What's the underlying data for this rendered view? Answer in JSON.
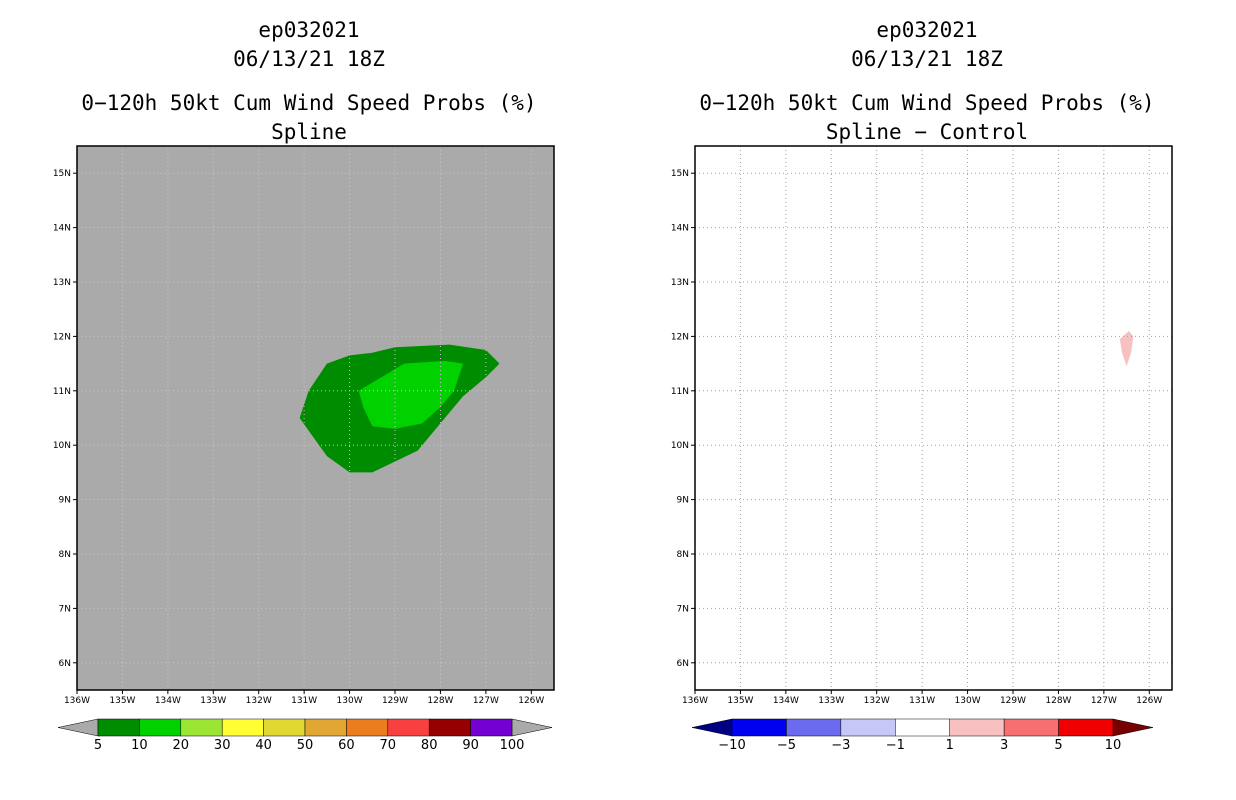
{
  "chart_data": [
    {
      "type": "heatmap",
      "titles": [
        "ep032021",
        "06/13/21 18Z",
        "0−120h 50kt Cum Wind Speed Probs (%)",
        "Spline"
      ],
      "x_ticks": [
        "136W",
        "135W",
        "134W",
        "133W",
        "132W",
        "131W",
        "130W",
        "129W",
        "128W",
        "127W",
        "126W"
      ],
      "y_ticks": [
        "6N",
        "7N",
        "8N",
        "9N",
        "10N",
        "11N",
        "12N",
        "13N",
        "14N",
        "15N"
      ],
      "xlim_lon": [
        -136,
        -125.5
      ],
      "ylim_lat": [
        5.5,
        15.5
      ],
      "background_color": "#aaaaaa",
      "colorbar": {
        "labels": [
          "5",
          "10",
          "20",
          "30",
          "40",
          "50",
          "60",
          "70",
          "80",
          "90",
          "100"
        ],
        "colors": [
          "#008c00",
          "#00d200",
          "#9be632",
          "#ffff32",
          "#dfd932",
          "#e1a732",
          "#eb7d1e",
          "#f84040",
          "#960000",
          "#7500d3"
        ],
        "under_color": "#aaaaaa",
        "over_color": "#aaaaaa"
      },
      "contours": [
        {
          "level": "5-10",
          "color": "#008c00",
          "polygon": [
            [
              -131.1,
              10.5
            ],
            [
              -130.9,
              11.0
            ],
            [
              -130.5,
              11.5
            ],
            [
              -130.0,
              11.65
            ],
            [
              -129.5,
              11.7
            ],
            [
              -129.0,
              11.8
            ],
            [
              -127.8,
              11.85
            ],
            [
              -127.0,
              11.75
            ],
            [
              -126.7,
              11.5
            ],
            [
              -127.0,
              11.25
            ],
            [
              -127.5,
              10.9
            ],
            [
              -128.0,
              10.4
            ],
            [
              -128.5,
              9.9
            ],
            [
              -129.5,
              9.5
            ],
            [
              -130.0,
              9.5
            ],
            [
              -130.5,
              9.8
            ]
          ]
        },
        {
          "level": "10-20",
          "color": "#00d200",
          "polygon": [
            [
              -129.8,
              11.0
            ],
            [
              -129.3,
              11.25
            ],
            [
              -128.8,
              11.5
            ],
            [
              -127.9,
              11.55
            ],
            [
              -127.5,
              11.5
            ],
            [
              -127.7,
              11.0
            ],
            [
              -128.0,
              10.7
            ],
            [
              -128.4,
              10.4
            ],
            [
              -129.0,
              10.3
            ],
            [
              -129.5,
              10.35
            ],
            [
              -129.7,
              10.7
            ]
          ]
        }
      ]
    },
    {
      "type": "heatmap",
      "titles": [
        "ep032021",
        "06/13/21 18Z",
        "0−120h 50kt Cum Wind Speed Probs (%)",
        "Spline − Control"
      ],
      "x_ticks": [
        "136W",
        "135W",
        "134W",
        "133W",
        "132W",
        "131W",
        "130W",
        "129W",
        "128W",
        "127W",
        "126W"
      ],
      "y_ticks": [
        "6N",
        "7N",
        "8N",
        "9N",
        "10N",
        "11N",
        "12N",
        "13N",
        "14N",
        "15N"
      ],
      "xlim_lon": [
        -136,
        -125.5
      ],
      "ylim_lat": [
        5.5,
        15.5
      ],
      "background_color": "#ffffff",
      "grid": true,
      "colorbar": {
        "labels": [
          "−10",
          "−5",
          "−3",
          "−1",
          "1",
          "3",
          "5",
          "10"
        ],
        "colors": [
          "#0000f0",
          "#6b6bef",
          "#c6c6f7",
          "#ffffff",
          "#f8c1c1",
          "#f86f6f",
          "#f00000"
        ],
        "under_color": "#000082",
        "over_color": "#780000"
      },
      "contours": [
        {
          "level": "1-3",
          "color": "#f8c1c1",
          "polygon": [
            [
              -126.45,
              12.1
            ],
            [
              -126.35,
              12.0
            ],
            [
              -126.4,
              11.7
            ],
            [
              -126.5,
              11.45
            ],
            [
              -126.6,
              11.7
            ],
            [
              -126.65,
              11.95
            ]
          ]
        }
      ]
    }
  ]
}
